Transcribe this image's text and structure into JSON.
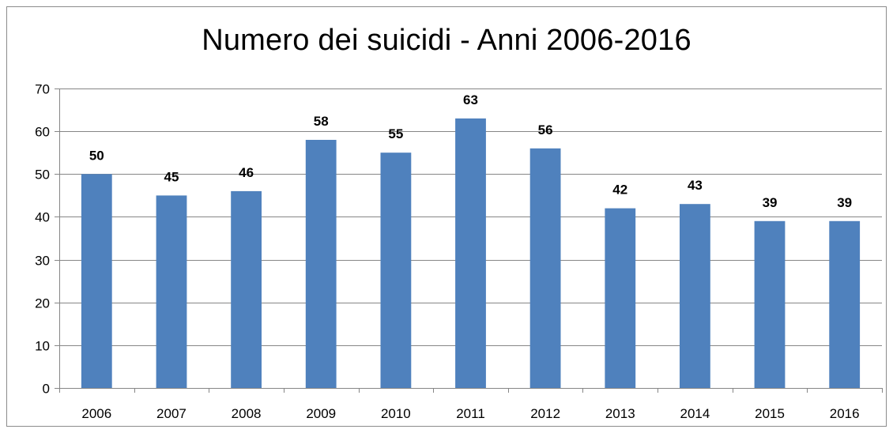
{
  "chart_data": {
    "type": "bar",
    "title": "Numero dei suicidi - Anni 2006-2016",
    "xlabel": "",
    "ylabel": "",
    "categories": [
      "2006",
      "2007",
      "2008",
      "2009",
      "2010",
      "2011",
      "2012",
      "2013",
      "2014",
      "2015",
      "2016"
    ],
    "values": [
      50,
      45,
      46,
      58,
      55,
      63,
      56,
      42,
      43,
      39,
      39
    ],
    "ylim": [
      0,
      70
    ],
    "yticks": [
      0,
      10,
      20,
      30,
      40,
      50,
      60,
      70
    ],
    "grid": true,
    "legend": "none",
    "data_labels": true,
    "bar_color": "#4f81bd"
  }
}
